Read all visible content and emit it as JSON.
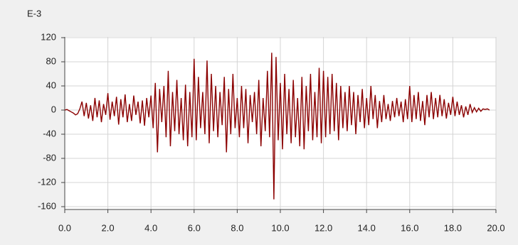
{
  "chart_data": {
    "type": "line",
    "axis_unit_label": "E-3",
    "x": [
      0.0,
      0.1,
      0.2,
      0.3,
      0.4,
      0.5,
      0.6,
      0.7,
      0.8,
      0.9,
      1.0,
      1.1,
      1.2,
      1.3,
      1.4,
      1.5,
      1.6,
      1.7,
      1.8,
      1.9,
      2.0,
      2.1,
      2.2,
      2.3,
      2.4,
      2.5,
      2.6,
      2.7,
      2.8,
      2.9,
      3.0,
      3.1,
      3.2,
      3.3,
      3.4,
      3.5,
      3.6,
      3.7,
      3.8,
      3.9,
      4.0,
      4.1,
      4.2,
      4.3,
      4.4,
      4.5,
      4.6,
      4.7,
      4.8,
      4.9,
      5.0,
      5.1,
      5.2,
      5.3,
      5.4,
      5.5,
      5.6,
      5.7,
      5.8,
      5.9,
      6.0,
      6.1,
      6.2,
      6.3,
      6.4,
      6.5,
      6.6,
      6.7,
      6.8,
      6.9,
      7.0,
      7.1,
      7.2,
      7.3,
      7.4,
      7.5,
      7.6,
      7.7,
      7.8,
      7.9,
      8.0,
      8.1,
      8.2,
      8.3,
      8.4,
      8.5,
      8.6,
      8.7,
      8.8,
      8.9,
      9.0,
      9.1,
      9.2,
      9.3,
      9.4,
      9.5,
      9.6,
      9.7,
      9.8,
      9.9,
      10.0,
      10.1,
      10.2,
      10.3,
      10.4,
      10.5,
      10.6,
      10.7,
      10.8,
      10.9,
      11.0,
      11.1,
      11.2,
      11.3,
      11.4,
      11.5,
      11.6,
      11.7,
      11.8,
      11.9,
      12.0,
      12.1,
      12.2,
      12.3,
      12.4,
      12.5,
      12.6,
      12.7,
      12.8,
      12.9,
      13.0,
      13.1,
      13.2,
      13.3,
      13.4,
      13.5,
      13.6,
      13.7,
      13.8,
      13.9,
      14.0,
      14.1,
      14.2,
      14.3,
      14.4,
      14.5,
      14.6,
      14.7,
      14.8,
      14.9,
      15.0,
      15.1,
      15.2,
      15.3,
      15.4,
      15.5,
      15.6,
      15.7,
      15.8,
      15.9,
      16.0,
      16.1,
      16.2,
      16.3,
      16.4,
      16.5,
      16.6,
      16.7,
      16.8,
      16.9,
      17.0,
      17.1,
      17.2,
      17.3,
      17.4,
      17.5,
      17.6,
      17.7,
      17.8,
      17.9,
      18.0,
      18.1,
      18.2,
      18.3,
      18.4,
      18.5,
      18.6,
      18.7,
      18.8,
      18.9,
      19.0,
      19.1,
      19.2,
      19.3,
      19.4,
      19.5,
      19.6,
      19.7
    ],
    "series": [
      {
        "color": "#8b0000",
        "values": [
          0,
          1,
          -1,
          -3,
          -5,
          -8,
          -6,
          2,
          14,
          -10,
          12,
          -14,
          8,
          -18,
          20,
          -12,
          16,
          -20,
          10,
          -8,
          28,
          -16,
          14,
          -10,
          22,
          -24,
          18,
          -12,
          26,
          -20,
          10,
          -18,
          24,
          -8,
          14,
          -22,
          16,
          -26,
          20,
          -12,
          24,
          -30,
          45,
          -70,
          35,
          -20,
          40,
          -45,
          65,
          -60,
          30,
          -35,
          50,
          -40,
          20,
          -50,
          42,
          -60,
          30,
          -45,
          85,
          -50,
          55,
          -30,
          30,
          -40,
          82,
          -55,
          60,
          -35,
          40,
          -45,
          30,
          -25,
          55,
          -70,
          35,
          -40,
          60,
          -30,
          20,
          -45,
          40,
          -30,
          35,
          -55,
          25,
          -20,
          30,
          -40,
          50,
          -60,
          20,
          -35,
          65,
          -45,
          95,
          -148,
          88,
          -50,
          45,
          -65,
          60,
          -40,
          35,
          -55,
          50,
          -45,
          20,
          -60,
          55,
          -65,
          40,
          -35,
          60,
          -50,
          30,
          -45,
          70,
          -55,
          65,
          -45,
          55,
          -40,
          60,
          -35,
          45,
          -50,
          40,
          -30,
          30,
          -35,
          40,
          -25,
          30,
          -40,
          25,
          -20,
          35,
          -30,
          20,
          -25,
          40,
          -15,
          25,
          -30,
          15,
          -20,
          25,
          -15,
          10,
          -18,
          15,
          -12,
          20,
          -10,
          14,
          -20,
          18,
          -15,
          40,
          -20,
          25,
          -15,
          30,
          -18,
          15,
          -25,
          25,
          -12,
          30,
          -15,
          20,
          -12,
          25,
          -10,
          18,
          -14,
          12,
          -8,
          22,
          -10,
          14,
          -8,
          8,
          -12,
          6,
          -8,
          10,
          -4,
          4,
          -3,
          3,
          -2,
          2,
          1,
          2,
          0
        ]
      }
    ],
    "xlim": [
      0,
      20
    ],
    "ylim": [
      -160,
      120
    ],
    "xticks": [
      {
        "value": 0,
        "label": "0.0"
      },
      {
        "value": 2,
        "label": "2.0"
      },
      {
        "value": 4,
        "label": "4.0"
      },
      {
        "value": 6,
        "label": "6.0"
      },
      {
        "value": 8,
        "label": "8.0"
      },
      {
        "value": 10,
        "label": "10.0"
      },
      {
        "value": 12,
        "label": "12.0"
      },
      {
        "value": 14,
        "label": "14.0"
      },
      {
        "value": 16,
        "label": "16.0"
      },
      {
        "value": 18,
        "label": "18.0"
      },
      {
        "value": 20,
        "label": "20.0"
      }
    ],
    "yticks": [
      120,
      80,
      40,
      0,
      -40,
      -80,
      -120,
      -160
    ],
    "grid": true
  }
}
